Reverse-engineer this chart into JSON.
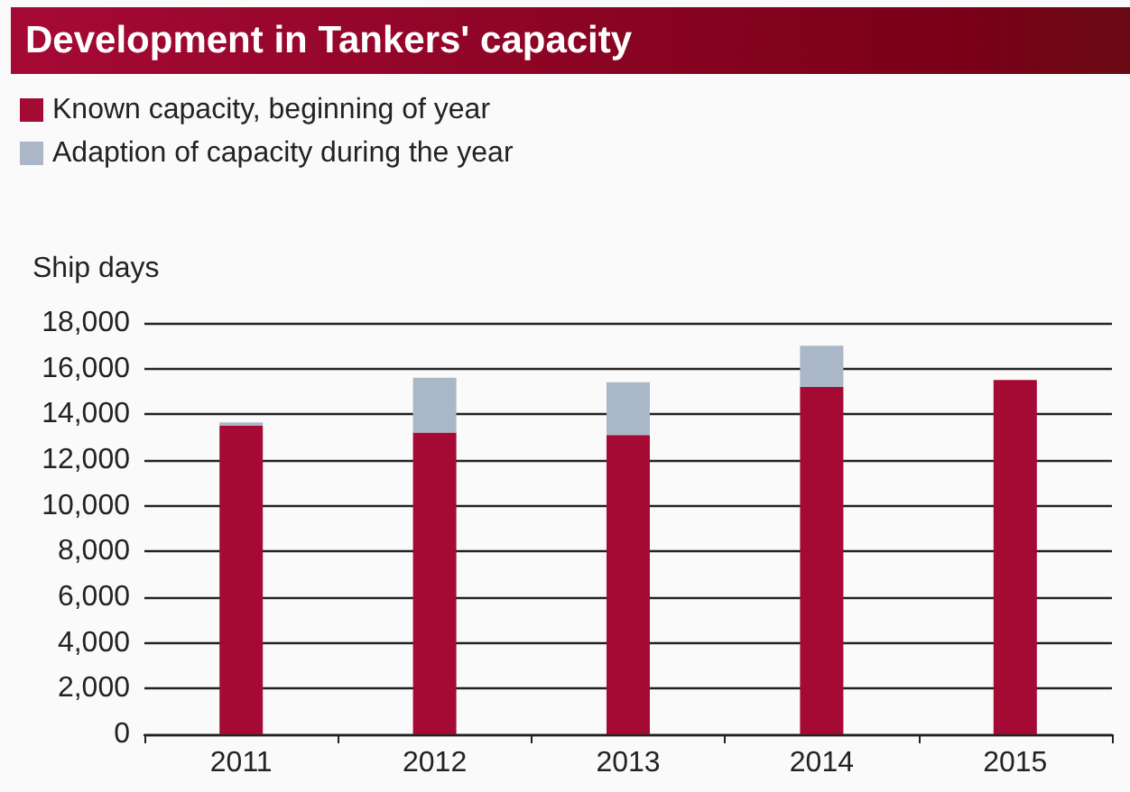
{
  "chart_data": {
    "type": "bar",
    "title": "Development in Tankers' capacity",
    "ylabel": "Ship days",
    "categories": [
      "2011",
      "2012",
      "2013",
      "2014",
      "2015"
    ],
    "stacked": true,
    "series": [
      {
        "name": "Known capacity, beginning of year",
        "color": "#a50a35",
        "values": [
          13500,
          13200,
          13100,
          15200,
          15500
        ]
      },
      {
        "name": "Adaption of capacity during the year",
        "color": "#a9b7c6",
        "values": [
          150,
          2400,
          2300,
          1800,
          0
        ]
      }
    ],
    "ylim": [
      0,
      18000
    ],
    "yticks": [
      0,
      {
        "value": 2000,
        "label": "2,000"
      },
      {
        "value": 4000,
        "label": "4,000"
      },
      {
        "value": 6000,
        "label": "6,000"
      },
      {
        "value": 8000,
        "label": "8,000"
      },
      {
        "value": 10000,
        "label": "10,000"
      },
      {
        "value": 12000,
        "label": "12,000"
      },
      {
        "value": 14000,
        "label": "14,000"
      },
      {
        "value": 16000,
        "label": "16,000"
      },
      {
        "value": 18000,
        "label": "18,000"
      }
    ],
    "grid": "y",
    "legend": "top left"
  }
}
